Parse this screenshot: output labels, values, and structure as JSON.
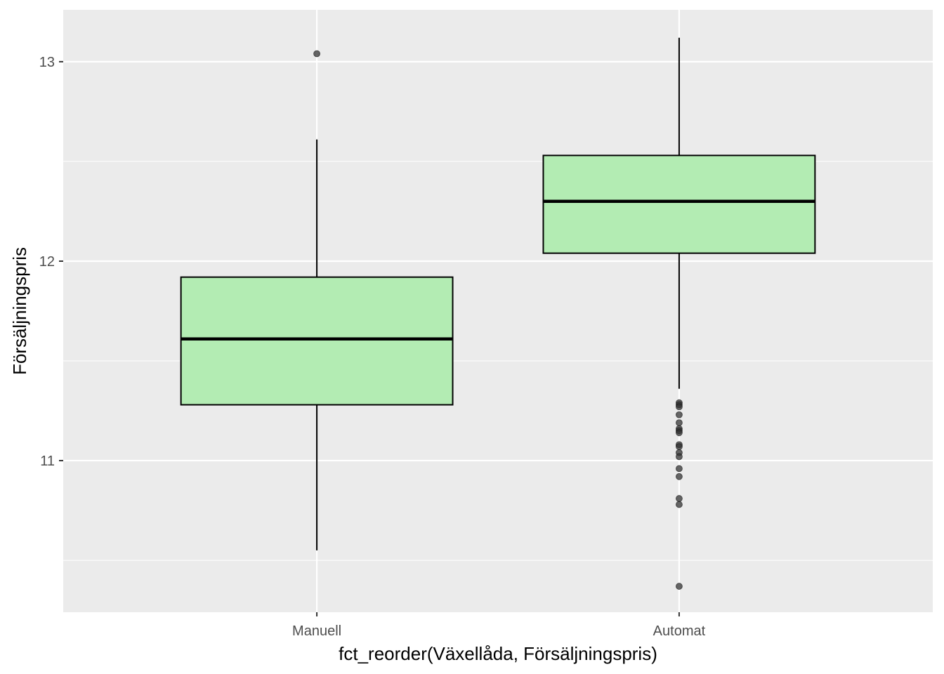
{
  "chart_data": {
    "type": "boxplot",
    "xlabel": "fct_reorder(Växellåda, Försäljningspris)",
    "ylabel": "Försäljningspris",
    "categories": [
      "Manuell",
      "Automat"
    ],
    "ylim": [
      10.24,
      13.26
    ],
    "yticks": [
      11,
      12,
      13
    ],
    "yticks_labels": [
      "11",
      "12",
      "13"
    ],
    "grid": true,
    "box_fill": "#b3ecb3",
    "panel_background": "#ebebeb",
    "grid_color": "#ffffff",
    "outlier_color": "#333333",
    "boxes": [
      {
        "category": "Manuell",
        "whisker_low": 10.55,
        "q1": 11.28,
        "median": 11.61,
        "q3": 11.92,
        "whisker_high": 12.61,
        "outliers": [
          13.04
        ]
      },
      {
        "category": "Automat",
        "whisker_low": 11.36,
        "q1": 12.04,
        "median": 12.3,
        "q3": 12.53,
        "whisker_high": 13.12,
        "outliers": [
          11.29,
          11.28,
          11.27,
          11.23,
          11.19,
          11.16,
          11.15,
          11.14,
          11.08,
          11.07,
          11.04,
          11.02,
          10.96,
          10.92,
          10.81,
          10.78,
          10.37
        ]
      }
    ]
  }
}
